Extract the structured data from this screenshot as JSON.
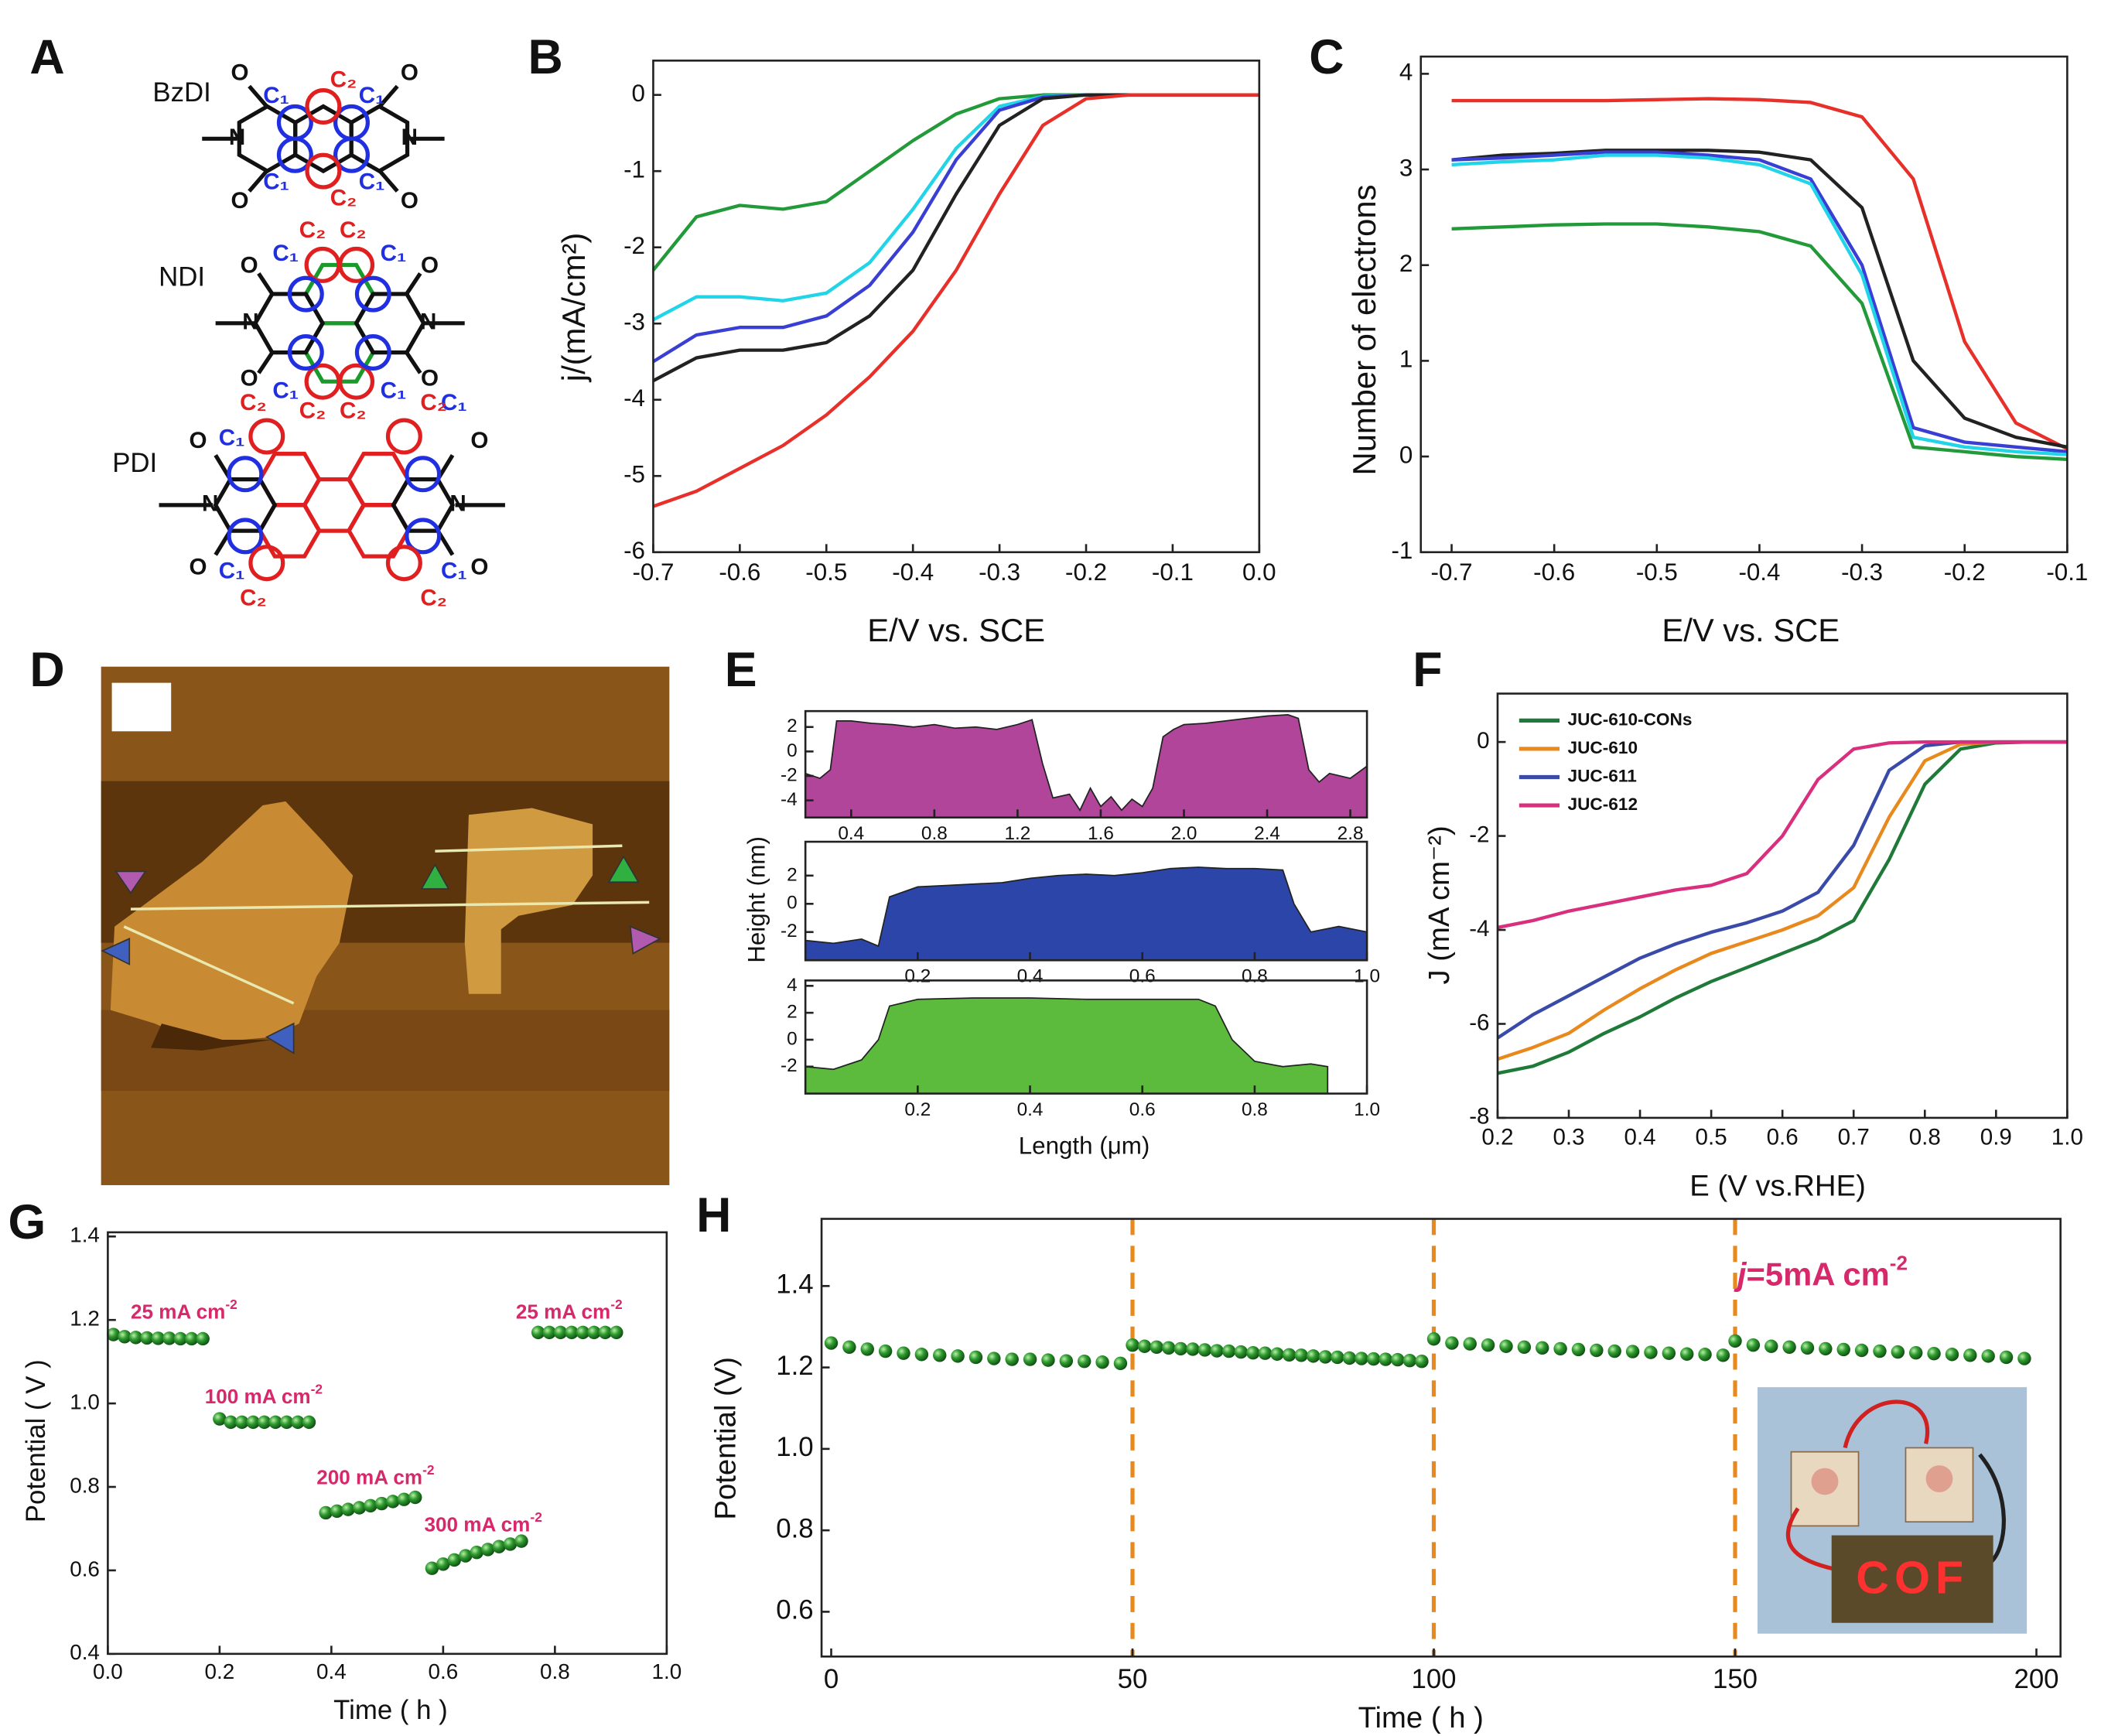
{
  "panel_labels": [
    "A",
    "B",
    "C",
    "D",
    "E",
    "F",
    "G",
    "H"
  ],
  "panel_A": {
    "molecules": [
      "BzDI",
      "NDI",
      "PDI"
    ],
    "oxygen": "O",
    "nitrogen": "N",
    "c1": "C₁",
    "c2": "C₂"
  },
  "chart_data": [
    {
      "type": "line",
      "xlabel": "E/V vs. SCE",
      "ylabel": "j/(mA/cm²)",
      "x": [
        -0.7,
        -0.65,
        -0.6,
        -0.55,
        -0.5,
        -0.45,
        -0.4,
        -0.35,
        -0.3,
        -0.25,
        -0.2,
        -0.15,
        -0.1,
        -0.05,
        0
      ],
      "series": [
        {
          "color": "#239a3a",
          "values": [
            -2.3,
            -1.6,
            -1.45,
            -1.5,
            -1.4,
            -1.0,
            -0.6,
            -0.25,
            -0.05,
            0,
            0,
            0,
            0,
            0,
            0
          ]
        },
        {
          "color": "#22d4e8",
          "values": [
            -2.95,
            -2.65,
            -2.65,
            -2.7,
            -2.6,
            -2.2,
            -1.5,
            -0.7,
            -0.15,
            -0.02,
            0,
            0,
            0,
            0,
            0
          ]
        },
        {
          "color": "#3a3fd4",
          "values": [
            -3.5,
            -3.15,
            -3.05,
            -3.05,
            -2.9,
            -2.5,
            -1.8,
            -0.85,
            -0.2,
            -0.03,
            0,
            0,
            0,
            0,
            0
          ]
        },
        {
          "color": "#222222",
          "values": [
            -3.75,
            -3.45,
            -3.35,
            -3.35,
            -3.25,
            -2.9,
            -2.3,
            -1.3,
            -0.4,
            -0.05,
            0,
            0,
            0,
            0,
            0
          ]
        },
        {
          "color": "#e8302a",
          "values": [
            -5.4,
            -5.2,
            -4.9,
            -4.6,
            -4.2,
            -3.7,
            -3.1,
            -2.3,
            -1.3,
            -0.4,
            -0.05,
            0,
            0,
            0,
            0
          ]
        }
      ],
      "xlim": [
        -0.7,
        0
      ],
      "ylim": [
        -6,
        0.45
      ],
      "xticks": [
        -0.7,
        -0.6,
        -0.5,
        -0.4,
        -0.3,
        -0.2,
        -0.1,
        {
          "value": 0,
          "label": "0.0"
        }
      ],
      "yticks": [
        -6,
        -5,
        -4,
        -3,
        -2,
        -1,
        0
      ]
    },
    {
      "type": "line",
      "xlabel": "E/V vs. SCE",
      "ylabel": "Number of electrons",
      "x": [
        -0.7,
        -0.65,
        -0.6,
        -0.55,
        -0.5,
        -0.45,
        -0.4,
        -0.35,
        -0.3,
        -0.25,
        -0.2,
        -0.15,
        -0.1
      ],
      "series": [
        {
          "color": "#e8302a",
          "values": [
            3.72,
            3.72,
            3.72,
            3.72,
            3.73,
            3.74,
            3.73,
            3.7,
            3.55,
            2.9,
            1.2,
            0.35,
            0.08
          ]
        },
        {
          "color": "#222222",
          "values": [
            3.1,
            3.15,
            3.17,
            3.2,
            3.2,
            3.2,
            3.18,
            3.1,
            2.6,
            1.0,
            0.4,
            0.2,
            0.1
          ]
        },
        {
          "color": "#3a3fd4",
          "values": [
            3.1,
            3.12,
            3.15,
            3.18,
            3.18,
            3.15,
            3.1,
            2.9,
            2.0,
            0.3,
            0.15,
            0.1,
            0.05
          ]
        },
        {
          "color": "#22d4e8",
          "values": [
            3.05,
            3.08,
            3.1,
            3.15,
            3.15,
            3.12,
            3.05,
            2.85,
            1.9,
            0.2,
            0.1,
            0.05,
            0.02
          ]
        },
        {
          "color": "#239a3a",
          "values": [
            2.38,
            2.4,
            2.42,
            2.43,
            2.43,
            2.4,
            2.35,
            2.2,
            1.6,
            0.1,
            0.05,
            0,
            -0.03
          ]
        }
      ],
      "xlim": [
        -0.73,
        -0.1
      ],
      "ylim": [
        -1,
        4.18
      ],
      "xticks": [
        -0.7,
        -0.6,
        -0.5,
        -0.4,
        -0.3,
        -0.2,
        -0.1
      ],
      "yticks": [
        -1,
        0,
        1,
        2,
        3,
        4
      ]
    },
    {
      "type": "area",
      "x": [
        0.18,
        0.25,
        0.3,
        0.33,
        0.4,
        0.5,
        0.6,
        0.7,
        0.8,
        0.9,
        1.0,
        1.1,
        1.2,
        1.27,
        1.32,
        1.37,
        1.45,
        1.5,
        1.55,
        1.6,
        1.65,
        1.7,
        1.75,
        1.8,
        1.85,
        1.9,
        1.95,
        2.0,
        2.1,
        2.2,
        2.3,
        2.4,
        2.5,
        2.55,
        2.6,
        2.65,
        2.7,
        2.8,
        2.88
      ],
      "series": [
        {
          "color": "#b0459a",
          "values": [
            -1.8,
            -2.2,
            -1.5,
            2.5,
            2.5,
            2.3,
            2.2,
            2.0,
            2.2,
            1.9,
            2.0,
            1.8,
            2.2,
            2.6,
            -1,
            -3.8,
            -3.5,
            -4.8,
            -3,
            -4.5,
            -3.7,
            -4.8,
            -3.9,
            -4.5,
            -3,
            1.2,
            1.8,
            2.2,
            2.3,
            2.5,
            2.7,
            2.9,
            3.0,
            2.7,
            -1.5,
            -2.5,
            -1.8,
            -2.2,
            -1.2
          ]
        }
      ],
      "xlim": [
        0.18,
        2.88
      ],
      "ylim": [
        -5.4,
        3.3
      ],
      "xticks": [
        0.4,
        0.8,
        1.2,
        1.6,
        {
          "value": 2,
          "label": "2.0"
        },
        2.4,
        2.8
      ],
      "yticks": [
        2,
        0,
        -2,
        -4
      ]
    },
    {
      "type": "area",
      "ylabel": "Height (nm)",
      "x": [
        0,
        0.05,
        0.1,
        0.13,
        0.15,
        0.2,
        0.25,
        0.3,
        0.35,
        0.4,
        0.45,
        0.5,
        0.55,
        0.6,
        0.65,
        0.7,
        0.75,
        0.8,
        0.85,
        0.87,
        0.9,
        0.95,
        1.0
      ],
      "series": [
        {
          "color": "#2b45a8",
          "values": [
            -2.6,
            -2.8,
            -2.5,
            -3.0,
            0.5,
            1.2,
            1.3,
            1.4,
            1.5,
            1.8,
            2.0,
            2.1,
            2.0,
            2.2,
            2.5,
            2.6,
            2.5,
            2.5,
            2.4,
            0,
            -2,
            -1.6,
            -2.0
          ]
        }
      ],
      "xlim": [
        0,
        1
      ],
      "ylim": [
        -4,
        4.4
      ],
      "xticks": [
        0.2,
        0.4,
        0.6,
        0.8,
        {
          "value": 1,
          "label": "1.0"
        }
      ],
      "yticks": [
        2,
        0,
        -2
      ]
    },
    {
      "type": "area",
      "xlabel": "Length (μm)",
      "x": [
        0,
        0.05,
        0.1,
        0.13,
        0.15,
        0.2,
        0.3,
        0.4,
        0.5,
        0.6,
        0.7,
        0.73,
        0.76,
        0.8,
        0.85,
        0.9,
        0.93
      ],
      "series": [
        {
          "color": "#5cbb3c",
          "values": [
            -2,
            -2.2,
            -1.5,
            0,
            2.5,
            3.0,
            3.1,
            3.1,
            3.0,
            3.0,
            3.0,
            2.5,
            0,
            -1.6,
            -2.0,
            -1.8,
            -2.0
          ]
        }
      ],
      "xlim": [
        0,
        1
      ],
      "ylim": [
        -4,
        4.4
      ],
      "xticks": [
        0.2,
        0.4,
        0.6,
        0.8,
        {
          "value": 1,
          "label": "1.0"
        }
      ],
      "yticks": [
        4,
        2,
        0,
        -2
      ]
    },
    {
      "type": "line",
      "xlabel": "E (V vs.RHE)",
      "ylabel": "J (mA cm⁻²)",
      "legend": "upper left",
      "x": [
        0.2,
        0.25,
        0.3,
        0.35,
        0.4,
        0.45,
        0.5,
        0.55,
        0.6,
        0.65,
        0.7,
        0.75,
        0.8,
        0.85,
        0.9,
        0.95,
        1.0
      ],
      "series": [
        {
          "name": "JUC-610-CONs",
          "color": "#1f7a3a",
          "values": [
            -7.05,
            -6.9,
            -6.6,
            -6.2,
            -5.85,
            -5.45,
            -5.1,
            -4.8,
            -4.5,
            -4.2,
            -3.8,
            -2.5,
            -0.9,
            -0.15,
            -0.02,
            0,
            0
          ]
        },
        {
          "name": "JUC-610",
          "color": "#e8891e",
          "values": [
            -6.75,
            -6.5,
            -6.2,
            -5.7,
            -5.25,
            -4.85,
            -4.5,
            -4.25,
            -4.0,
            -3.7,
            -3.1,
            -1.6,
            -0.4,
            -0.05,
            0,
            0,
            0
          ]
        },
        {
          "name": "JUC-611",
          "color": "#3a4aa8",
          "values": [
            -6.3,
            -5.8,
            -5.4,
            -5.0,
            -4.6,
            -4.3,
            -4.05,
            -3.85,
            -3.6,
            -3.2,
            -2.2,
            -0.6,
            -0.08,
            0,
            0,
            0,
            0
          ]
        },
        {
          "name": "JUC-612",
          "color": "#d8307e",
          "values": [
            -3.95,
            -3.8,
            -3.6,
            -3.45,
            -3.3,
            -3.15,
            -3.05,
            -2.8,
            -2.0,
            -0.8,
            -0.15,
            -0.02,
            0,
            0,
            0,
            0,
            0
          ]
        }
      ],
      "xlim": [
        0.2,
        1
      ],
      "ylim": [
        -8,
        1.03
      ],
      "xticks": [
        0.2,
        0.3,
        0.4,
        0.5,
        0.6,
        0.7,
        0.8,
        0.9,
        {
          "value": 1,
          "label": "1.0"
        }
      ],
      "yticks": [
        0,
        -2,
        -4,
        -6,
        -8
      ]
    },
    {
      "type": "scatter",
      "xlabel": "Time ( h )",
      "ylabel": "Potential ( V )",
      "color": "#1f8a2a",
      "x": [
        0.01,
        0.03,
        0.05,
        0.07,
        0.09,
        0.11,
        0.13,
        0.15,
        0.17,
        0.2,
        0.22,
        0.24,
        0.26,
        0.28,
        0.3,
        0.32,
        0.34,
        0.36,
        0.39,
        0.41,
        0.43,
        0.45,
        0.47,
        0.49,
        0.51,
        0.53,
        0.55,
        0.58,
        0.6,
        0.62,
        0.64,
        0.66,
        0.68,
        0.7,
        0.72,
        0.74,
        0.77,
        0.79,
        0.81,
        0.83,
        0.85,
        0.87,
        0.89,
        0.91
      ],
      "values": [
        1.165,
        1.16,
        1.158,
        1.157,
        1.156,
        1.156,
        1.155,
        1.155,
        1.155,
        0.963,
        0.955,
        0.955,
        0.955,
        0.955,
        0.955,
        0.955,
        0.955,
        0.955,
        0.738,
        0.742,
        0.746,
        0.75,
        0.755,
        0.76,
        0.765,
        0.77,
        0.775,
        0.605,
        0.615,
        0.625,
        0.635,
        0.643,
        0.65,
        0.657,
        0.663,
        0.67,
        1.17,
        1.17,
        1.17,
        1.17,
        1.17,
        1.17,
        1.17,
        1.17
      ],
      "annotations": [
        {
          "text": "25 mA cm",
          "sup": "-2"
        },
        {
          "text": "100 mA cm",
          "sup": "-2"
        },
        {
          "text": "200 mA cm",
          "sup": "-2"
        },
        {
          "text": "300 mA cm",
          "sup": "-2"
        },
        {
          "text": "25 mA cm",
          "sup": "-2"
        }
      ],
      "annotation_color": "#d6286b",
      "xlim": [
        0,
        1
      ],
      "ylim": [
        0.4,
        1.41
      ],
      "xticks": [
        {
          "value": 0,
          "label": "0.0"
        },
        0.2,
        0.4,
        0.6,
        0.8,
        {
          "value": 1,
          "label": "1.0"
        }
      ],
      "yticks": [
        0.4,
        0.6,
        0.8,
        {
          "value": 1,
          "label": "1.0"
        },
        1.2,
        1.4
      ]
    },
    {
      "type": "scatter",
      "xlabel": "Time ( h )",
      "ylabel": "Potential (V)",
      "color": "#1f8a2a",
      "x": [
        0,
        3,
        6,
        9,
        12,
        15,
        18,
        21,
        24,
        27,
        30,
        33,
        36,
        39,
        42,
        45,
        48,
        50,
        52,
        54,
        56,
        58,
        60,
        62,
        64,
        66,
        68,
        70,
        72,
        74,
        76,
        78,
        80,
        82,
        84,
        86,
        88,
        90,
        92,
        94,
        96,
        98,
        100,
        103,
        106,
        109,
        112,
        115,
        118,
        121,
        124,
        127,
        130,
        133,
        136,
        139,
        142,
        145,
        148,
        150,
        153,
        156,
        159,
        162,
        165,
        168,
        171,
        174,
        177,
        180,
        183,
        186,
        189,
        192,
        195,
        198
      ],
      "values": [
        1.26,
        1.25,
        1.245,
        1.24,
        1.235,
        1.232,
        1.23,
        1.228,
        1.225,
        1.222,
        1.22,
        1.22,
        1.218,
        1.216,
        1.215,
        1.213,
        1.21,
        1.255,
        1.252,
        1.25,
        1.248,
        1.246,
        1.245,
        1.243,
        1.241,
        1.24,
        1.238,
        1.236,
        1.235,
        1.233,
        1.231,
        1.23,
        1.228,
        1.226,
        1.225,
        1.223,
        1.222,
        1.221,
        1.22,
        1.219,
        1.217,
        1.215,
        1.27,
        1.26,
        1.258,
        1.255,
        1.252,
        1.25,
        1.248,
        1.246,
        1.244,
        1.242,
        1.24,
        1.239,
        1.237,
        1.235,
        1.233,
        1.232,
        1.23,
        1.265,
        1.255,
        1.252,
        1.25,
        1.248,
        1.246,
        1.244,
        1.242,
        1.24,
        1.238,
        1.236,
        1.234,
        1.232,
        1.23,
        1.228,
        1.225,
        1.222
      ],
      "vlines": [
        50,
        100,
        150
      ],
      "vline_color": "#e8891e",
      "annotations": [
        {
          "italic": "j",
          "text": "=5mA cm",
          "sup": "-2"
        }
      ],
      "annotation_color": "#d6286b",
      "inset_text": "COF",
      "xlim": [
        -1.6,
        204
      ],
      "ylim": [
        0.49,
        1.565
      ],
      "xticks": [
        0,
        50,
        100,
        150,
        200
      ],
      "yticks": [
        0.6,
        0.8,
        {
          "value": 1,
          "label": "1.0"
        },
        1.2,
        1.4
      ]
    }
  ]
}
